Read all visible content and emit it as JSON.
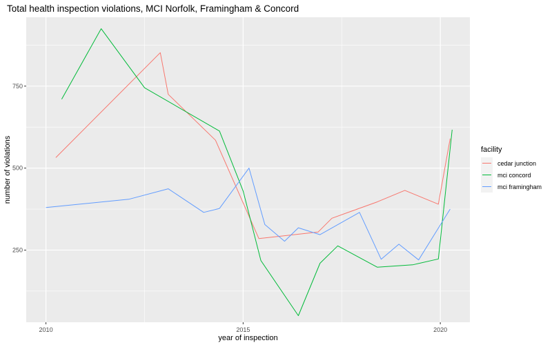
{
  "chart_data": {
    "type": "line",
    "title": "Total health inspection violations, MCI Norfolk, Framingham & Concord",
    "xlabel": "year of inspection",
    "ylabel": "number of violations",
    "x_ticks": [
      2010,
      2015,
      2020
    ],
    "y_ticks": [
      250,
      500,
      750
    ],
    "xlim": [
      2009.5,
      2020.75
    ],
    "ylim": [
      30,
      960
    ],
    "grid": true,
    "legend": {
      "title": "facility",
      "position": "right"
    },
    "series": [
      {
        "name": "cedar junction",
        "color": "#F8766D",
        "points": [
          [
            2010.25,
            532
          ],
          [
            2012.9,
            852
          ],
          [
            2013.1,
            725
          ],
          [
            2014.3,
            585
          ],
          [
            2015.4,
            285
          ],
          [
            2016.9,
            305
          ],
          [
            2017.25,
            347
          ],
          [
            2018.4,
            397
          ],
          [
            2019.1,
            432
          ],
          [
            2019.95,
            390
          ],
          [
            2020.25,
            590
          ]
        ]
      },
      {
        "name": "mci concord",
        "color": "#00BA38",
        "points": [
          [
            2010.4,
            710
          ],
          [
            2011.4,
            925
          ],
          [
            2012.5,
            745
          ],
          [
            2014.4,
            613
          ],
          [
            2015.0,
            430
          ],
          [
            2015.45,
            218
          ],
          [
            2016.4,
            50
          ],
          [
            2016.95,
            210
          ],
          [
            2017.4,
            263
          ],
          [
            2018.4,
            198
          ],
          [
            2019.3,
            205
          ],
          [
            2019.95,
            223
          ],
          [
            2020.3,
            617
          ]
        ]
      },
      {
        "name": "mci framingham",
        "color": "#619CFF",
        "points": [
          [
            2010.0,
            380
          ],
          [
            2012.1,
            405
          ],
          [
            2013.1,
            437
          ],
          [
            2014.0,
            365
          ],
          [
            2014.4,
            377
          ],
          [
            2015.15,
            500
          ],
          [
            2015.55,
            328
          ],
          [
            2016.05,
            277
          ],
          [
            2016.4,
            318
          ],
          [
            2016.95,
            297
          ],
          [
            2017.95,
            365
          ],
          [
            2018.5,
            222
          ],
          [
            2018.95,
            268
          ],
          [
            2019.45,
            220
          ],
          [
            2020.25,
            375
          ]
        ]
      }
    ]
  }
}
